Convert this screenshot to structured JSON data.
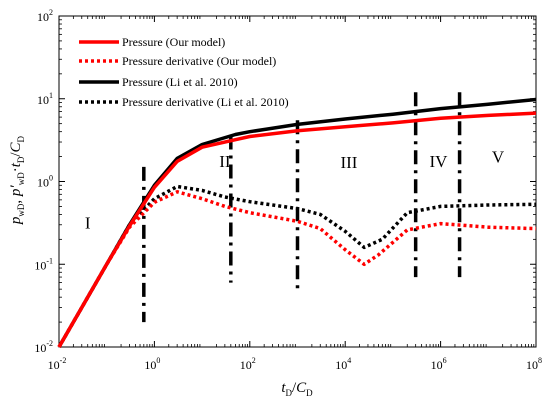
{
  "chart_data": {
    "type": "line",
    "xscale": "log",
    "yscale": "log",
    "xlim": [
      0.01,
      100000000
    ],
    "ylim": [
      0.01,
      100
    ],
    "x_ticks": [
      {
        "base": "10",
        "exp": "-2",
        "v": 0.01
      },
      {
        "base": "10",
        "exp": "0",
        "v": 1
      },
      {
        "base": "10",
        "exp": "2",
        "v": 100
      },
      {
        "base": "10",
        "exp": "4",
        "v": 10000
      },
      {
        "base": "10",
        "exp": "6",
        "v": 1000000
      },
      {
        "base": "10",
        "exp": "8",
        "v": 100000000
      }
    ],
    "y_ticks": [
      {
        "base": "10",
        "exp": "-2",
        "v": 0.01
      },
      {
        "base": "10",
        "exp": "-1",
        "v": 0.1
      },
      {
        "base": "10",
        "exp": "0",
        "v": 1
      },
      {
        "base": "10",
        "exp": "1",
        "v": 10
      },
      {
        "base": "10",
        "exp": "2",
        "v": 100
      }
    ],
    "xlabel": {
      "t": "t",
      "t_sub": "D",
      "slash": "/",
      "c": "C",
      "c_sub": "D"
    },
    "ylabel": {
      "p": "p",
      "p_sub": "wD",
      "comma": ", ",
      "pp": "p′",
      "pp_sub": "wD",
      "dot": "·",
      "t": "t",
      "t_sub": "D",
      "slash": "/",
      "c": "C",
      "c_sub": "D"
    },
    "legend_position": "top-left",
    "grid": false,
    "series": [
      {
        "name": "Pressure (Our model)",
        "color": "#ff0000",
        "style": "solid",
        "points": [
          [
            0.01,
            0.01
          ],
          [
            0.03,
            0.03
          ],
          [
            0.1,
            0.1
          ],
          [
            0.3,
            0.29
          ],
          [
            1,
            0.85
          ],
          [
            3,
            1.75
          ],
          [
            10,
            2.6
          ],
          [
            50,
            3.2
          ],
          [
            100,
            3.5
          ],
          [
            1000,
            4.1
          ],
          [
            10000,
            4.6
          ],
          [
            100000,
            5.1
          ],
          [
            1000000,
            5.8
          ],
          [
            10000000,
            6.3
          ],
          [
            100000000,
            6.7
          ]
        ]
      },
      {
        "name": "Pressure derivative (Our model)",
        "color": "#ff0000",
        "style": "dotted",
        "points": [
          [
            0.01,
            0.01
          ],
          [
            0.03,
            0.03
          ],
          [
            0.1,
            0.1
          ],
          [
            0.3,
            0.28
          ],
          [
            1,
            0.56
          ],
          [
            3,
            0.75
          ],
          [
            10,
            0.62
          ],
          [
            30,
            0.5
          ],
          [
            100,
            0.42
          ],
          [
            1000,
            0.33
          ],
          [
            3000,
            0.27
          ],
          [
            10000,
            0.15
          ],
          [
            25000,
            0.1
          ],
          [
            50000,
            0.13
          ],
          [
            200000,
            0.26
          ],
          [
            1000000,
            0.31
          ],
          [
            10000000,
            0.28
          ],
          [
            100000000,
            0.27
          ]
        ]
      },
      {
        "name": "Pressure (Li et al. 2010)",
        "color": "#000000",
        "style": "solid",
        "points": [
          [
            0.01,
            0.01
          ],
          [
            0.03,
            0.03
          ],
          [
            0.1,
            0.1
          ],
          [
            0.3,
            0.3
          ],
          [
            1,
            0.9
          ],
          [
            3,
            1.9
          ],
          [
            10,
            2.8
          ],
          [
            50,
            3.7
          ],
          [
            100,
            4.0
          ],
          [
            1000,
            4.9
          ],
          [
            10000,
            5.7
          ],
          [
            100000,
            6.5
          ],
          [
            1000000,
            7.6
          ],
          [
            10000000,
            8.6
          ],
          [
            100000000,
            9.8
          ]
        ]
      },
      {
        "name": "Pressure derivative (Li et al. 2010)",
        "color": "#000000",
        "style": "dotted",
        "points": [
          [
            0.01,
            0.01
          ],
          [
            0.03,
            0.03
          ],
          [
            0.1,
            0.1
          ],
          [
            0.3,
            0.3
          ],
          [
            1,
            0.62
          ],
          [
            3,
            0.87
          ],
          [
            10,
            0.78
          ],
          [
            30,
            0.65
          ],
          [
            100,
            0.57
          ],
          [
            1000,
            0.47
          ],
          [
            3000,
            0.4
          ],
          [
            10000,
            0.25
          ],
          [
            25000,
            0.16
          ],
          [
            60000,
            0.2
          ],
          [
            200000,
            0.42
          ],
          [
            1000000,
            0.5
          ],
          [
            10000000,
            0.52
          ],
          [
            100000000,
            0.53
          ]
        ]
      }
    ],
    "regions": [
      {
        "label": "I",
        "x": 0.04,
        "y": 0.27
      },
      {
        "label": "II",
        "x": 30,
        "y": 1.5
      },
      {
        "label": "III",
        "x": 12000,
        "y": 1.45
      },
      {
        "label": "IV",
        "x": 900000,
        "y": 1.5
      },
      {
        "label": "V",
        "x": 16000000,
        "y": 1.7
      }
    ],
    "boundaries": [
      {
        "x": 0.6,
        "y1": 0.02,
        "y2": 1.5
      },
      {
        "x": 40,
        "y1": 0.06,
        "y2": 3.6
      },
      {
        "x": 1000,
        "y1": 0.05,
        "y2": 5.5
      },
      {
        "x": 300000,
        "y1": 0.07,
        "y2": 12
      },
      {
        "x": 2500000,
        "y1": 0.07,
        "y2": 12
      }
    ]
  }
}
